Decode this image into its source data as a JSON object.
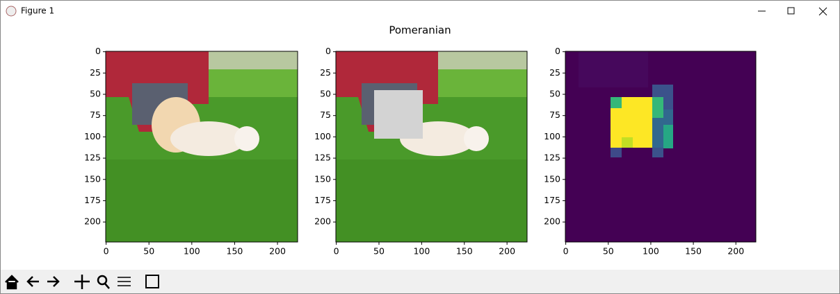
{
  "window_title": "Figure 1",
  "figure_title": "Pomeranian",
  "chart_data": [
    {
      "type": "image",
      "xlim": [
        -0.5,
        223.5
      ],
      "ylim": [
        223.5,
        -0.5
      ],
      "xticks": [
        0,
        50,
        100,
        150,
        200
      ],
      "yticks": [
        0,
        25,
        50,
        75,
        100,
        125,
        150,
        175,
        200
      ]
    },
    {
      "type": "image",
      "xlim": [
        -0.5,
        223.5
      ],
      "ylim": [
        223.5,
        -0.5
      ],
      "xticks": [
        0,
        50,
        100,
        150,
        200
      ],
      "yticks": [
        0,
        25,
        50,
        75,
        100,
        125,
        150,
        175,
        200
      ]
    },
    {
      "type": "image",
      "xlim": [
        -0.5,
        223.5
      ],
      "ylim": [
        223.5,
        -0.5
      ],
      "xticks": [
        0,
        50,
        100,
        150,
        200
      ],
      "yticks": [
        0,
        25,
        50,
        75,
        100,
        125,
        150,
        175,
        200
      ]
    }
  ]
}
